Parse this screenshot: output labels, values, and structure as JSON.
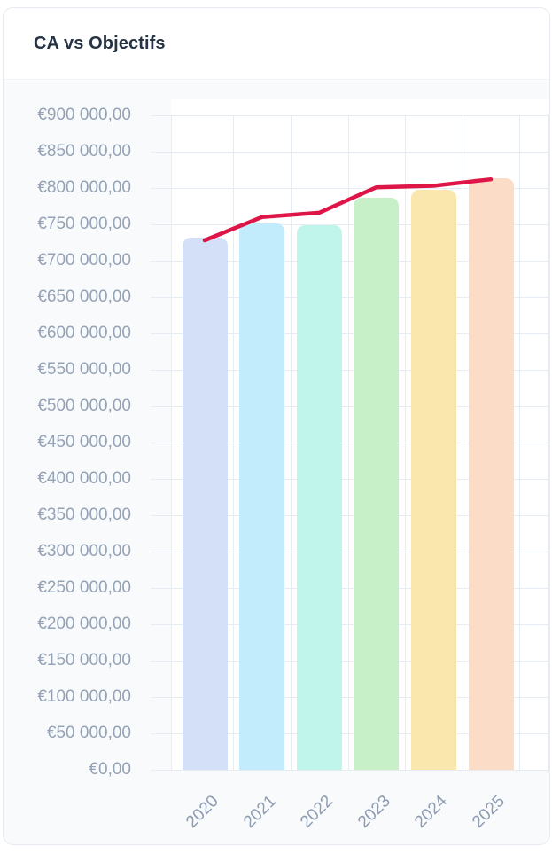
{
  "card": {
    "title": "CA vs Objectifs"
  },
  "chart_data": {
    "type": "bar",
    "title": "CA vs Objectifs",
    "categories": [
      "2020",
      "2021",
      "2022",
      "2023",
      "2024",
      "2025"
    ],
    "series": [
      {
        "name": "CA",
        "type": "bar",
        "values": [
          732000,
          751000,
          749000,
          787000,
          798000,
          814000
        ],
        "bar_colors": [
          "#d3e0f8",
          "#c2ecfb",
          "#c0f5ec",
          "#c8f0c8",
          "#fae7ae",
          "#fadcc7"
        ]
      },
      {
        "name": "Objectifs",
        "type": "line",
        "values": [
          728000,
          760000,
          766000,
          801000,
          803000,
          812000
        ],
        "color": "#de1648"
      }
    ],
    "xlabel": "",
    "ylabel": "",
    "ylim": [
      0,
      900000
    ],
    "ytick_step": 50000,
    "y_tick_labels": [
      "€900 000,00",
      "€850 000,00",
      "€800 000,00",
      "€750 000,00",
      "€700 000,00",
      "€650 000,00",
      "€600 000,00",
      "€550 000,00",
      "€500 000,00",
      "€450 000,00",
      "€400 000,00",
      "€350 000,00",
      "€300 000,00",
      "€250 000,00",
      "€200 000,00",
      "€150 000,00",
      "€100 000,00",
      "€50 000,00",
      "€0,00"
    ],
    "grid": true,
    "legend_position": "none"
  },
  "style": {
    "title_color": "#263344",
    "axis_label_color": "#94a2b6",
    "grid_color": "#e6ecf3",
    "card_border_color": "#e7eaf0",
    "card_body_bg": "#f8fafc",
    "plot_bg": "#ffffff",
    "line_color": "#de1648"
  }
}
